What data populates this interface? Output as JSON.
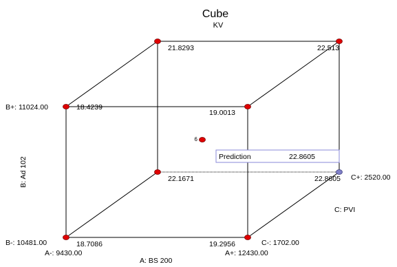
{
  "title": "Cube",
  "subtitle": "KV",
  "colors": {
    "edge": "#000000",
    "point": "#e00000",
    "point_outline": "#7a0000",
    "selected_point": "#8080c8",
    "prediction_border": "#8a8ad8"
  },
  "factors": {
    "A": {
      "axis_label": "A: BS 200",
      "low_label": "A-: 9430.00",
      "high_label": "A+: 12430.00"
    },
    "B": {
      "axis_label": "B: Ad 102",
      "low_label": "B-: 10481.00",
      "high_label": "B+: 11024.00"
    },
    "C": {
      "axis_label": "C: PVI",
      "low_label": "C-: 1702.00",
      "high_label": "C+: 2520.00"
    }
  },
  "corners": [
    {
      "a": "-",
      "b": "-",
      "c": "-",
      "value": "18.7086"
    },
    {
      "a": "+",
      "b": "-",
      "c": "-",
      "value": "19.2956"
    },
    {
      "a": "-",
      "b": "+",
      "c": "-",
      "value": "18.4239"
    },
    {
      "a": "+",
      "b": "+",
      "c": "-",
      "value": "19.0013"
    },
    {
      "a": "-",
      "b": "-",
      "c": "+",
      "value": "22.1671"
    },
    {
      "a": "+",
      "b": "-",
      "c": "+",
      "value": "22.8605"
    },
    {
      "a": "-",
      "b": "+",
      "c": "+",
      "value": "21.8293"
    },
    {
      "a": "+",
      "b": "+",
      "c": "+",
      "value": "22.513"
    }
  ],
  "center_point": {
    "replicates": "6"
  },
  "prediction": {
    "label": "Prediction",
    "value": "22.8605"
  }
}
